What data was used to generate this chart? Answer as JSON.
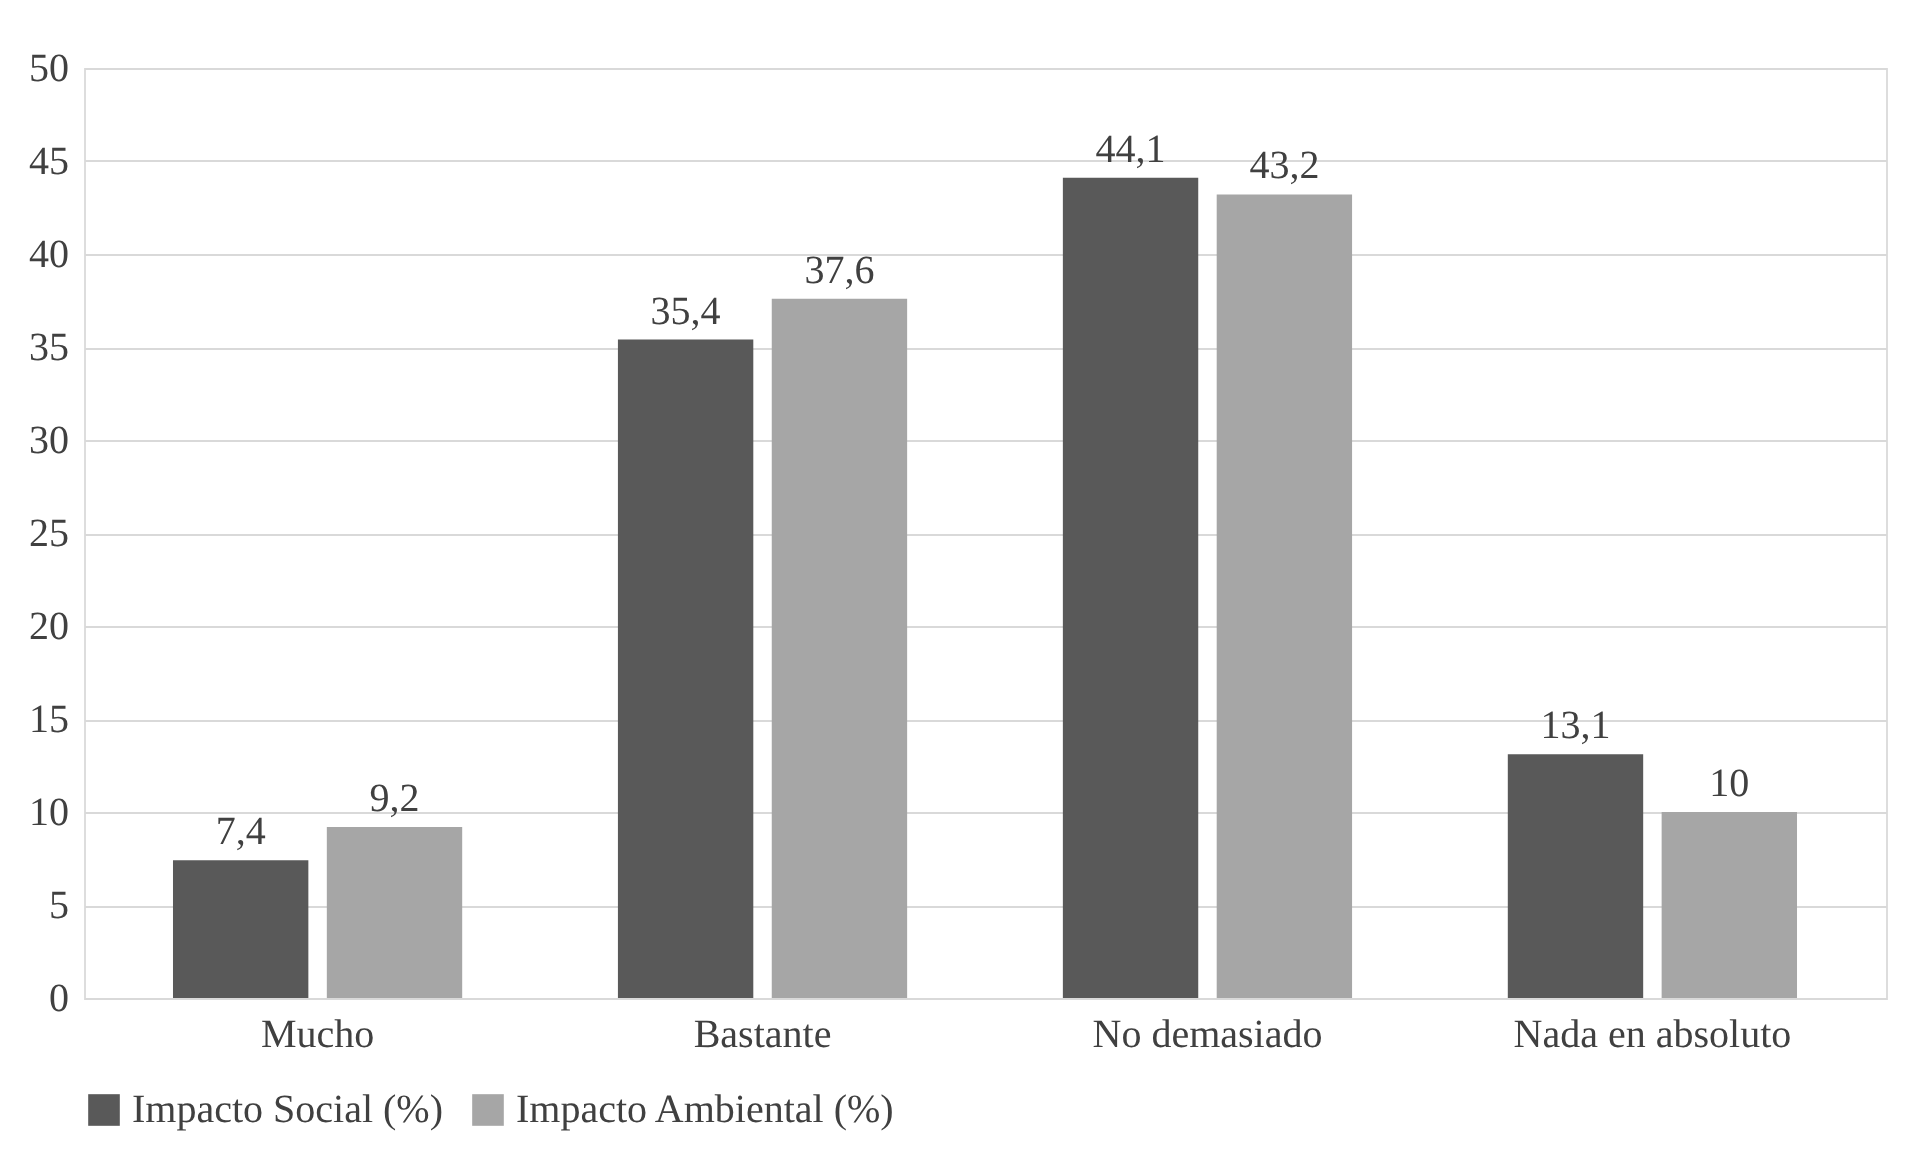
{
  "chart_data": {
    "type": "bar",
    "categories": [
      "Mucho",
      "Bastante",
      "No demasiado",
      "Nada en absoluto"
    ],
    "series": [
      {
        "name": "Impacto Social (%)",
        "color": "#595959",
        "values": [
          7.4,
          35.4,
          44.1,
          13.1
        ],
        "value_labels": [
          "7,4",
          "35,4",
          "44,1",
          "13,1"
        ]
      },
      {
        "name": "Impacto Ambiental (%)",
        "color": "#a6a6a6",
        "values": [
          9.2,
          37.6,
          43.2,
          10
        ],
        "value_labels": [
          "9,2",
          "37,6",
          "43,2",
          "10"
        ]
      }
    ],
    "ylim": [
      0,
      50
    ],
    "yticks": [
      0,
      5,
      10,
      15,
      20,
      25,
      30,
      35,
      40,
      45,
      50
    ],
    "grid": "y",
    "legend": "bottom"
  }
}
